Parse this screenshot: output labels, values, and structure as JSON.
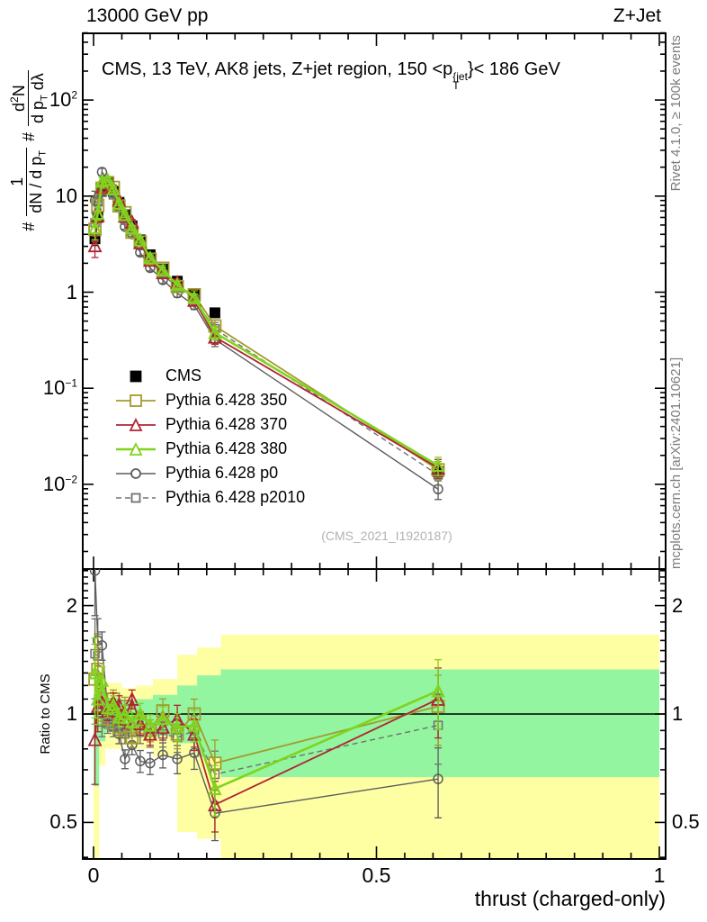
{
  "header": {
    "left": "13000 GeV pp",
    "right": "Z+Jet"
  },
  "panel_title": {
    "prefix": "CMS, 13 TeV, AK8 jets, Z+jet region, 150 <p",
    "sup": "{jet",
    "sub": "T",
    "suffix": "}< 186 GeV"
  },
  "watermark": "(CMS_2021_I1920187)",
  "side_notes": {
    "top_rotated": "Rivet 4.1.0, ≥ 100k events",
    "bottom_rotated": "mcplots.cern.ch [arXiv:2401.10621]"
  },
  "y_axis_label": {
    "hash1": "#",
    "frac1_num": "1",
    "frac1_den_pre": "dN / d p",
    "frac1_den_sub": "T",
    "hash2": "#",
    "frac2_num_pre": "d",
    "frac2_num_sup": "2",
    "frac2_num_post": "N",
    "frac2_den_pre": "d p",
    "frac2_den_sub": "T",
    "frac2_den_post": " dλ"
  },
  "ratio_label": "Ratio to CMS",
  "x_axis_title": "thrust (charged-only)",
  "chart_data": {
    "type": "line",
    "title": "CMS, 13 TeV, AK8 jets, Z+jet region, 150 < pT^jet < 186 GeV",
    "xlabel": "thrust (charged-only)",
    "ylabel_main": "# 1/(dN/dpT) # d2N/(dpT dlambda)",
    "ylabel_ratio": "Ratio to CMS",
    "x_tick_labels": [
      {
        "v": 0,
        "t": "0"
      },
      {
        "v": 0.5,
        "t": "0.5"
      },
      {
        "v": 1,
        "t": "1"
      }
    ],
    "x_minor_step": 0.05,
    "main_axis": {
      "scale": "log",
      "decades": [
        2,
        1,
        0,
        -1,
        -2
      ],
      "ylim": [
        0.0013,
        520
      ]
    },
    "ratio_axis": {
      "scale": "log",
      "ylim": [
        0.396,
        2.53
      ],
      "major": [
        {
          "v": 0.5,
          "t": "0.5"
        },
        {
          "v": 1,
          "t": "1"
        },
        {
          "v": 2,
          "t": "2"
        }
      ],
      "minor": [
        0.4,
        0.6,
        0.7,
        0.8,
        0.9,
        1.1,
        1.2,
        1.3,
        1.4,
        1.5,
        1.6,
        1.7,
        1.8,
        1.9,
        2.1,
        2.2,
        2.3,
        2.4,
        2.5
      ]
    },
    "bin_centers": [
      0.0025,
      0.0075,
      0.015,
      0.025,
      0.035,
      0.045,
      0.0555,
      0.068,
      0.0825,
      0.1,
      0.1225,
      0.148,
      0.178,
      0.2145,
      0.609
    ],
    "cms": {
      "label": "CMS",
      "color": "#000000",
      "values": [
        3.6,
        6.0,
        11.5,
        14.2,
        11.2,
        8.6,
        6.4,
        4.9,
        3.5,
        2.45,
        1.74,
        1.3,
        0.94,
        0.61,
        0.0135
      ],
      "err_frac": [
        0.15,
        0.08,
        0.05,
        0.04,
        0.04,
        0.04,
        0.05,
        0.05,
        0.05,
        0.06,
        0.06,
        0.07,
        0.08,
        0.1,
        0.15
      ]
    },
    "mc_err_frac": [
      0.25,
      0.15,
      0.09,
      0.06,
      0.06,
      0.06,
      0.06,
      0.06,
      0.07,
      0.07,
      0.08,
      0.09,
      0.1,
      0.16,
      0.22
    ],
    "series": [
      {
        "label": "Pythia 6.428 350",
        "color": "#a39b2d",
        "marker": "square",
        "msize": 13,
        "lw": 1.8,
        "mw": 1.8,
        "dash": null,
        "ratio_to_cms": [
          1.25,
          1.33,
          1.05,
          0.97,
          1.1,
          0.92,
          1.05,
          0.86,
          0.95,
          0.9,
          1.02,
          0.88,
          1.0,
          0.73,
          1.05
        ]
      },
      {
        "label": "Pythia 6.428 370",
        "color": "#b02433",
        "marker": "triangle",
        "msize": 13,
        "lw": 1.8,
        "mw": 1.8,
        "dash": null,
        "ratio_to_cms": [
          0.85,
          1.05,
          1.08,
          1.02,
          1.08,
          1.06,
          0.97,
          1.1,
          0.94,
          0.88,
          0.92,
          0.97,
          0.88,
          0.56,
          1.1
        ]
      },
      {
        "label": "Pythia 6.428 380",
        "color": "#7fd41e",
        "marker": "triangle",
        "msize": 12,
        "lw": 2.6,
        "mw": 2.2,
        "dash": null,
        "ratio_to_cms": [
          1.3,
          1.1,
          1.24,
          1.04,
          1.06,
          0.98,
          1.0,
          0.95,
          1.0,
          0.93,
          0.97,
          0.92,
          0.93,
          0.62,
          1.16
        ]
      },
      {
        "label": "Pythia 6.428 p0",
        "color": "#5c5c5c",
        "marker": "circle",
        "msize": 10,
        "lw": 1.4,
        "mw": 1.5,
        "dash": null,
        "ratio_to_cms": [
          2.5,
          1.6,
          1.55,
          1.02,
          0.96,
          0.88,
          0.75,
          0.82,
          0.74,
          0.73,
          0.77,
          0.75,
          0.78,
          0.53,
          0.66
        ]
      },
      {
        "label": "Pythia 6.428 p2010",
        "color": "#707070",
        "marker": "square",
        "msize": 9,
        "lw": 1.4,
        "mw": 1.5,
        "dash": "6,4",
        "ratio_to_cms": [
          1.47,
          1.45,
          0.95,
          0.94,
          0.92,
          0.93,
          0.88,
          0.89,
          0.89,
          0.87,
          0.88,
          0.86,
          0.9,
          0.68,
          0.93
        ]
      }
    ],
    "bands": {
      "colors": {
        "outer": "#feffa3",
        "inner": "#93f5a0"
      },
      "steps": [
        {
          "x0": 0.0,
          "x1": 0.01,
          "outer": [
            0.0,
            1.7
          ],
          "inner": [
            0.63,
            1.13
          ]
        },
        {
          "x0": 0.01,
          "x1": 0.021,
          "outer": [
            0.72,
            1.3
          ],
          "inner": [
            0.84,
            1.16
          ]
        },
        {
          "x0": 0.021,
          "x1": 0.05,
          "outer": [
            0.8,
            1.22
          ],
          "inner": [
            0.89,
            1.11
          ]
        },
        {
          "x0": 0.05,
          "x1": 0.075,
          "outer": [
            0.82,
            1.18
          ],
          "inner": [
            0.9,
            1.09
          ]
        },
        {
          "x0": 0.075,
          "x1": 0.105,
          "outer": [
            0.8,
            1.2
          ],
          "inner": [
            0.89,
            1.1
          ]
        },
        {
          "x0": 0.105,
          "x1": 0.148,
          "outer": [
            0.76,
            1.25
          ],
          "inner": [
            0.87,
            1.13
          ]
        },
        {
          "x0": 0.148,
          "x1": 0.183,
          "outer": [
            0.47,
            1.46
          ],
          "inner": [
            0.83,
            1.2
          ]
        },
        {
          "x0": 0.183,
          "x1": 0.225,
          "outer": [
            0.45,
            1.53
          ],
          "inner": [
            0.76,
            1.28
          ]
        },
        {
          "x0": 0.225,
          "x1": 1.0,
          "outer": [
            0.0,
            1.66
          ],
          "inner": [
            0.668,
            1.33
          ]
        }
      ]
    }
  }
}
